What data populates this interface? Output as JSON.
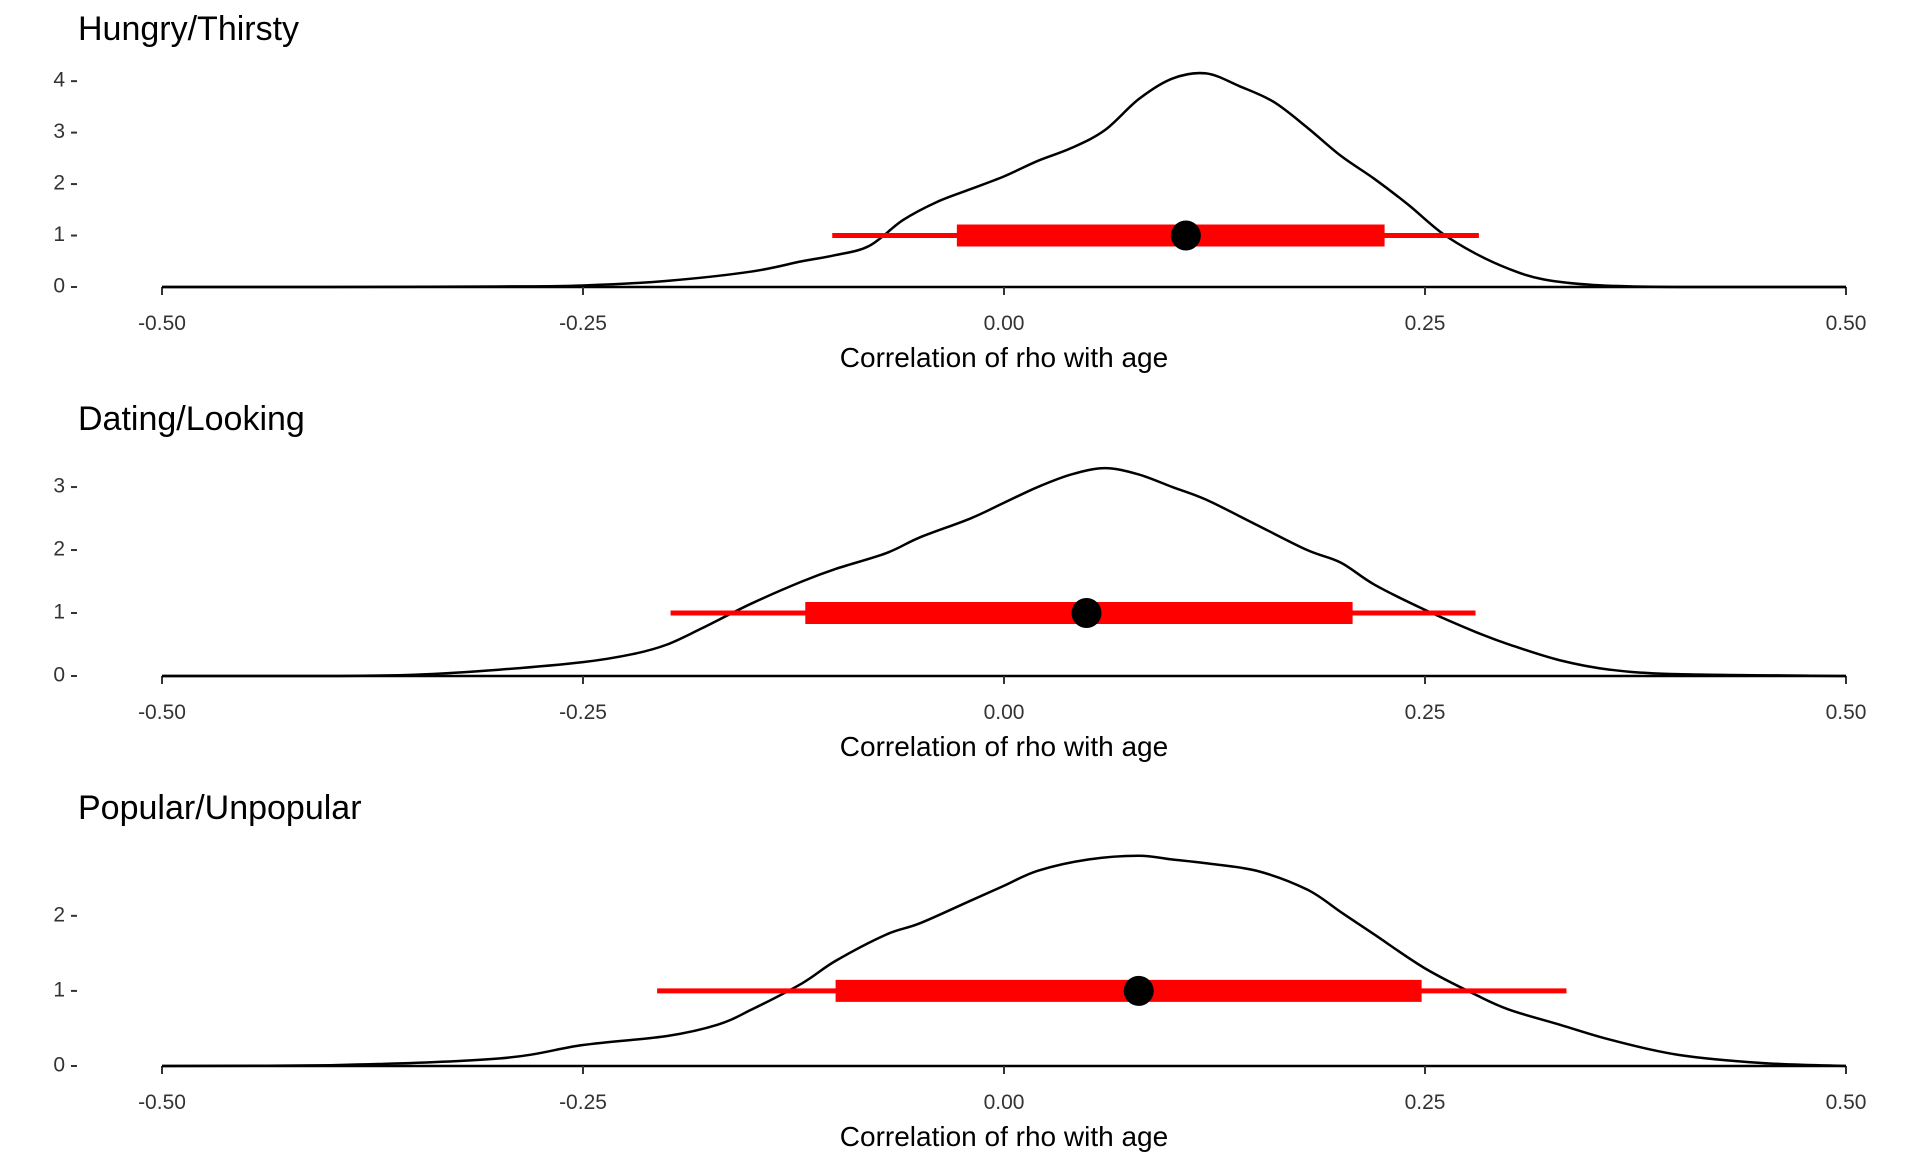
{
  "chart_data": [
    {
      "type": "density",
      "title": "Hungry/Thirsty",
      "xlabel": "Correlation of rho with age",
      "ylabel": "",
      "xlim": [
        -0.5,
        0.5
      ],
      "ylim": [
        0,
        4.1
      ],
      "xticks": [
        "-0.50",
        "-0.25",
        "0.00",
        "0.25",
        "0.50"
      ],
      "yticks": [
        "0",
        "1",
        "2",
        "3",
        "4"
      ],
      "density": {
        "x": [
          -0.5,
          -0.4,
          -0.3,
          -0.25,
          -0.2,
          -0.15,
          -0.12,
          -0.1,
          -0.08,
          -0.06,
          -0.04,
          -0.02,
          0.0,
          0.02,
          0.04,
          0.06,
          0.08,
          0.1,
          0.12,
          0.14,
          0.16,
          0.18,
          0.2,
          0.22,
          0.24,
          0.26,
          0.28,
          0.3,
          0.32,
          0.35,
          0.4,
          0.5
        ],
        "y": [
          0.0,
          0.0,
          0.01,
          0.03,
          0.12,
          0.3,
          0.5,
          0.62,
          0.8,
          1.3,
          1.65,
          1.9,
          2.15,
          2.45,
          2.7,
          3.05,
          3.65,
          4.05,
          4.15,
          3.9,
          3.6,
          3.1,
          2.55,
          2.1,
          1.6,
          1.05,
          0.65,
          0.35,
          0.15,
          0.04,
          0.0,
          0.0
        ]
      },
      "point_estimate": {
        "x": 0.108,
        "y": 1
      },
      "interval_outer": [
        -0.102,
        0.282
      ],
      "interval_inner": [
        -0.028,
        0.226
      ],
      "line_color": "#000000",
      "interval_color": "#ff0000"
    },
    {
      "type": "density",
      "title": "Dating/Looking",
      "xlabel": "Correlation of rho with age",
      "ylabel": "",
      "xlim": [
        -0.5,
        0.5
      ],
      "ylim": [
        0,
        3.35
      ],
      "xticks": [
        "-0.50",
        "-0.25",
        "0.00",
        "0.25",
        "0.50"
      ],
      "yticks": [
        "0",
        "1",
        "2",
        "3"
      ],
      "density": {
        "x": [
          -0.5,
          -0.4,
          -0.35,
          -0.3,
          -0.25,
          -0.22,
          -0.2,
          -0.18,
          -0.15,
          -0.12,
          -0.1,
          -0.07,
          -0.05,
          -0.02,
          0.0,
          0.02,
          0.04,
          0.06,
          0.08,
          0.1,
          0.12,
          0.15,
          0.18,
          0.2,
          0.22,
          0.25,
          0.28,
          0.3,
          0.33,
          0.36,
          0.4,
          0.5
        ],
        "y": [
          0.0,
          0.0,
          0.02,
          0.1,
          0.22,
          0.35,
          0.5,
          0.75,
          1.15,
          1.5,
          1.7,
          1.95,
          2.2,
          2.5,
          2.75,
          3.0,
          3.2,
          3.3,
          3.2,
          3.0,
          2.8,
          2.4,
          2.0,
          1.8,
          1.45,
          1.05,
          0.7,
          0.5,
          0.25,
          0.1,
          0.03,
          0.0
        ]
      },
      "point_estimate": {
        "x": 0.049,
        "y": 1
      },
      "interval_outer": [
        -0.198,
        0.28
      ],
      "interval_inner": [
        -0.118,
        0.207
      ],
      "line_color": "#000000",
      "interval_color": "#ff0000"
    },
    {
      "type": "density",
      "title": "Popular/Unpopular",
      "xlabel": "Correlation of rho with age",
      "ylabel": "",
      "xlim": [
        -0.5,
        0.5
      ],
      "ylim": [
        0,
        2.85
      ],
      "xticks": [
        "-0.50",
        "-0.25",
        "0.00",
        "0.25",
        "0.50"
      ],
      "yticks": [
        "0",
        "1",
        "2"
      ],
      "density": {
        "x": [
          -0.5,
          -0.4,
          -0.3,
          -0.25,
          -0.2,
          -0.17,
          -0.15,
          -0.12,
          -0.1,
          -0.07,
          -0.05,
          -0.02,
          0.0,
          0.02,
          0.05,
          0.08,
          0.1,
          0.12,
          0.15,
          0.18,
          0.2,
          0.22,
          0.25,
          0.28,
          0.3,
          0.33,
          0.36,
          0.4,
          0.45,
          0.5
        ],
        "y": [
          0.0,
          0.01,
          0.1,
          0.28,
          0.4,
          0.55,
          0.75,
          1.1,
          1.4,
          1.75,
          1.9,
          2.2,
          2.4,
          2.6,
          2.75,
          2.8,
          2.75,
          2.7,
          2.6,
          2.35,
          2.05,
          1.75,
          1.3,
          0.95,
          0.75,
          0.55,
          0.35,
          0.15,
          0.04,
          0.0
        ]
      },
      "point_estimate": {
        "x": 0.08,
        "y": 1
      },
      "interval_outer": [
        -0.206,
        0.334
      ],
      "interval_inner": [
        -0.1,
        0.248
      ],
      "line_color": "#000000",
      "interval_color": "#ff0000"
    }
  ]
}
